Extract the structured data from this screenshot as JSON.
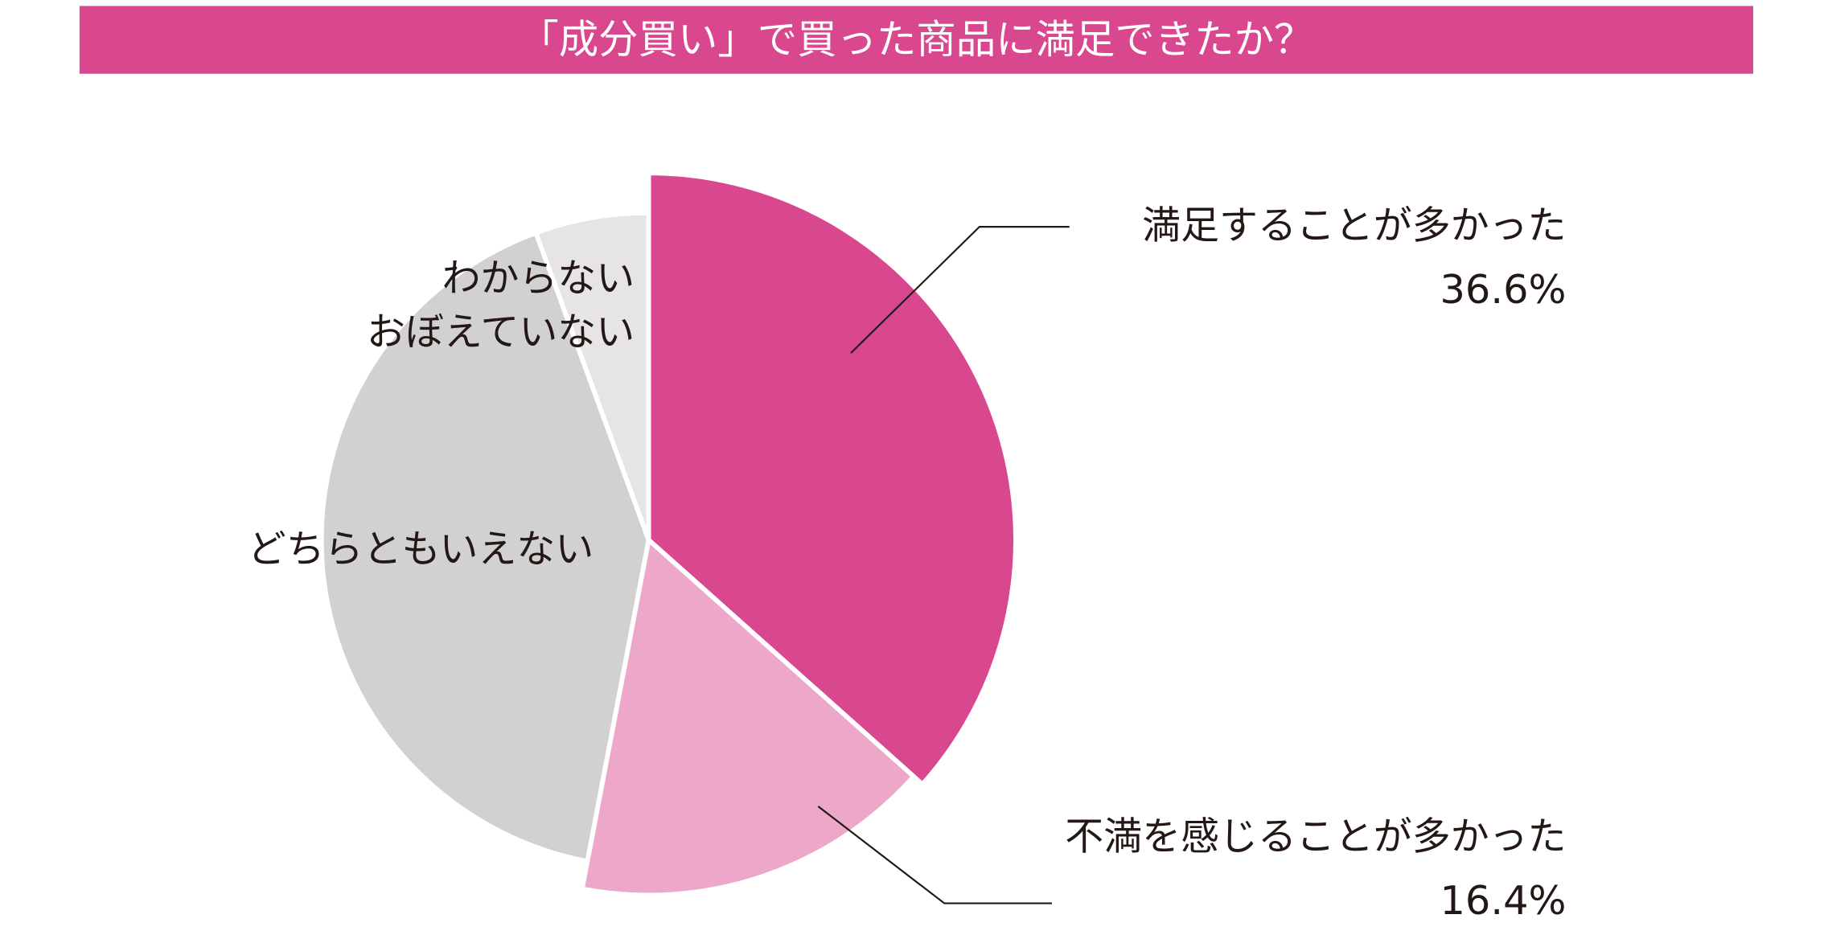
{
  "chart_data": {
    "type": "pie",
    "title": "「成分買い」で買った商品に満足できたか？",
    "categories": [
      "満足することが多かった",
      "不満を感じることが多かった",
      "どちらともいえない",
      "わからない\nおぼえていない"
    ],
    "values": [
      36.6,
      16.4,
      41.4,
      5.6
    ],
    "value_labels": [
      "36.6%",
      "16.4%",
      null,
      null
    ],
    "colors": [
      "#d9488f",
      "#eca7c9",
      "#d1d1d1",
      "#e6e4e5"
    ]
  }
}
